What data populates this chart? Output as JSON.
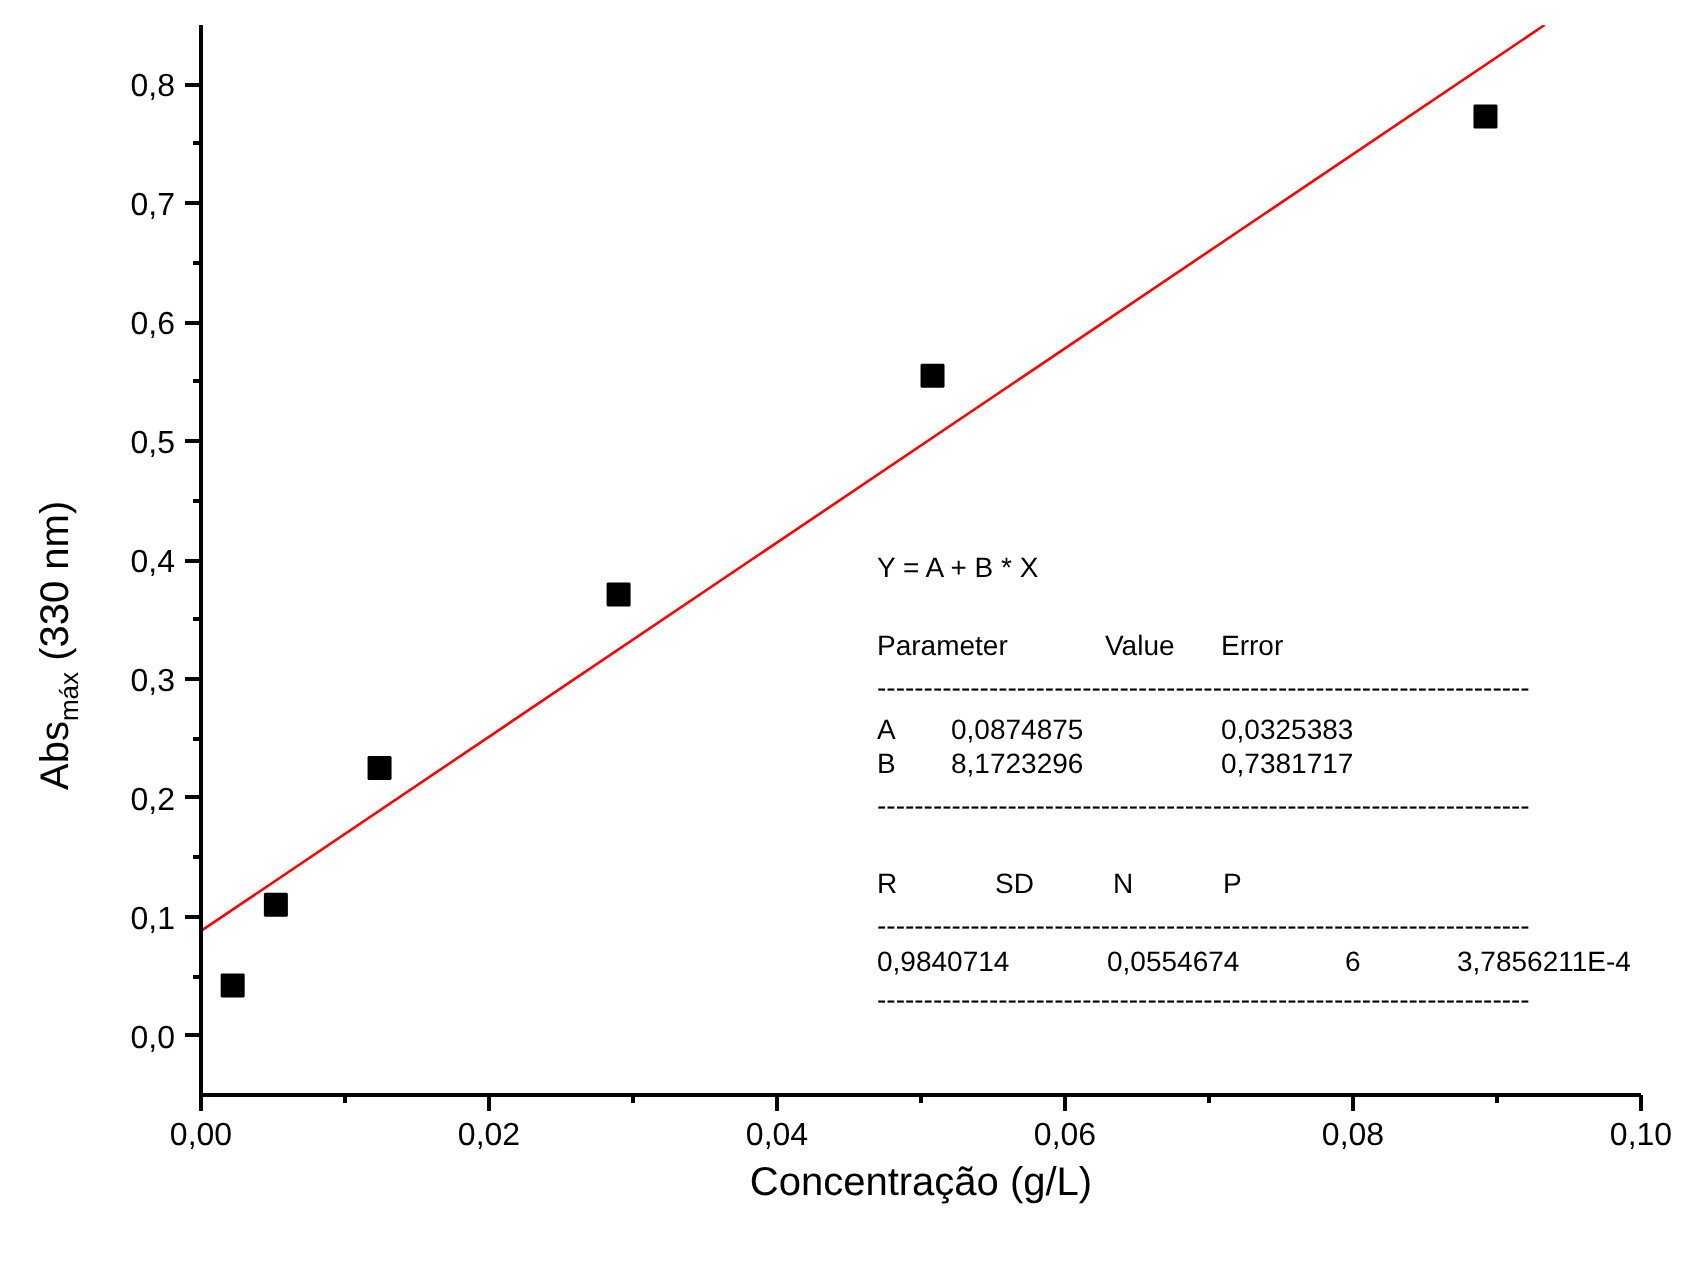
{
  "chart_data": {
    "type": "scatter",
    "xlabel": "Concentração (g/L)",
    "ylabel": "Abs$_{máx}$ (330 nm)",
    "xlim": [
      0,
      0.1
    ],
    "ylim": [
      -0.05,
      0.85
    ],
    "xticks": [
      {
        "value": 0,
        "label": "0,00"
      },
      {
        "value": 0.02,
        "label": "0,02"
      },
      {
        "value": 0.04,
        "label": "0,04"
      },
      {
        "value": 0.06,
        "label": "0,06"
      },
      {
        "value": 0.08,
        "label": "0,08"
      },
      {
        "value": 0.1,
        "label": "0,10"
      }
    ],
    "yticks": [
      {
        "value": 0,
        "label": "0,0"
      },
      {
        "value": 0.1,
        "label": "0,1"
      },
      {
        "value": 0.2,
        "label": "0,2"
      },
      {
        "value": 0.3,
        "label": "0,3"
      },
      {
        "value": 0.4,
        "label": "0,4"
      },
      {
        "value": 0.5,
        "label": "0,5"
      },
      {
        "value": 0.6,
        "label": "0,6"
      },
      {
        "value": 0.7,
        "label": "0,7"
      },
      {
        "value": 0.8,
        "label": "0,8"
      }
    ],
    "grid": false,
    "series": [
      {
        "marker": "square",
        "color": "#000000",
        "x": [
          0.0022,
          0.0052,
          0.0124,
          0.029,
          0.0508,
          0.0892
        ],
        "values": [
          0.042,
          0.11,
          0.225,
          0.371,
          0.555,
          0.773
        ]
      },
      {
        "type": "line",
        "color": "#ff0000",
        "x": [
          0,
          0.0933
        ],
        "values": [
          0.088,
          0.85
        ]
      }
    ],
    "annotations": [
      "Y = A + B * X",
      "Parameter",
      "Value",
      "Error",
      "----------------------------------------------------------------------",
      "A",
      "0,0874875",
      "0,0325383",
      "B",
      "8,1723296",
      "0,7381717",
      "----------------------------------------------------------------------",
      "R",
      "SD",
      "N",
      "P",
      "----------------------------------------------------------------------",
      "0,9840714",
      "0,0554674",
      "6",
      "3,7856211E-4",
      "----------------------------------------------------------------------"
    ]
  }
}
